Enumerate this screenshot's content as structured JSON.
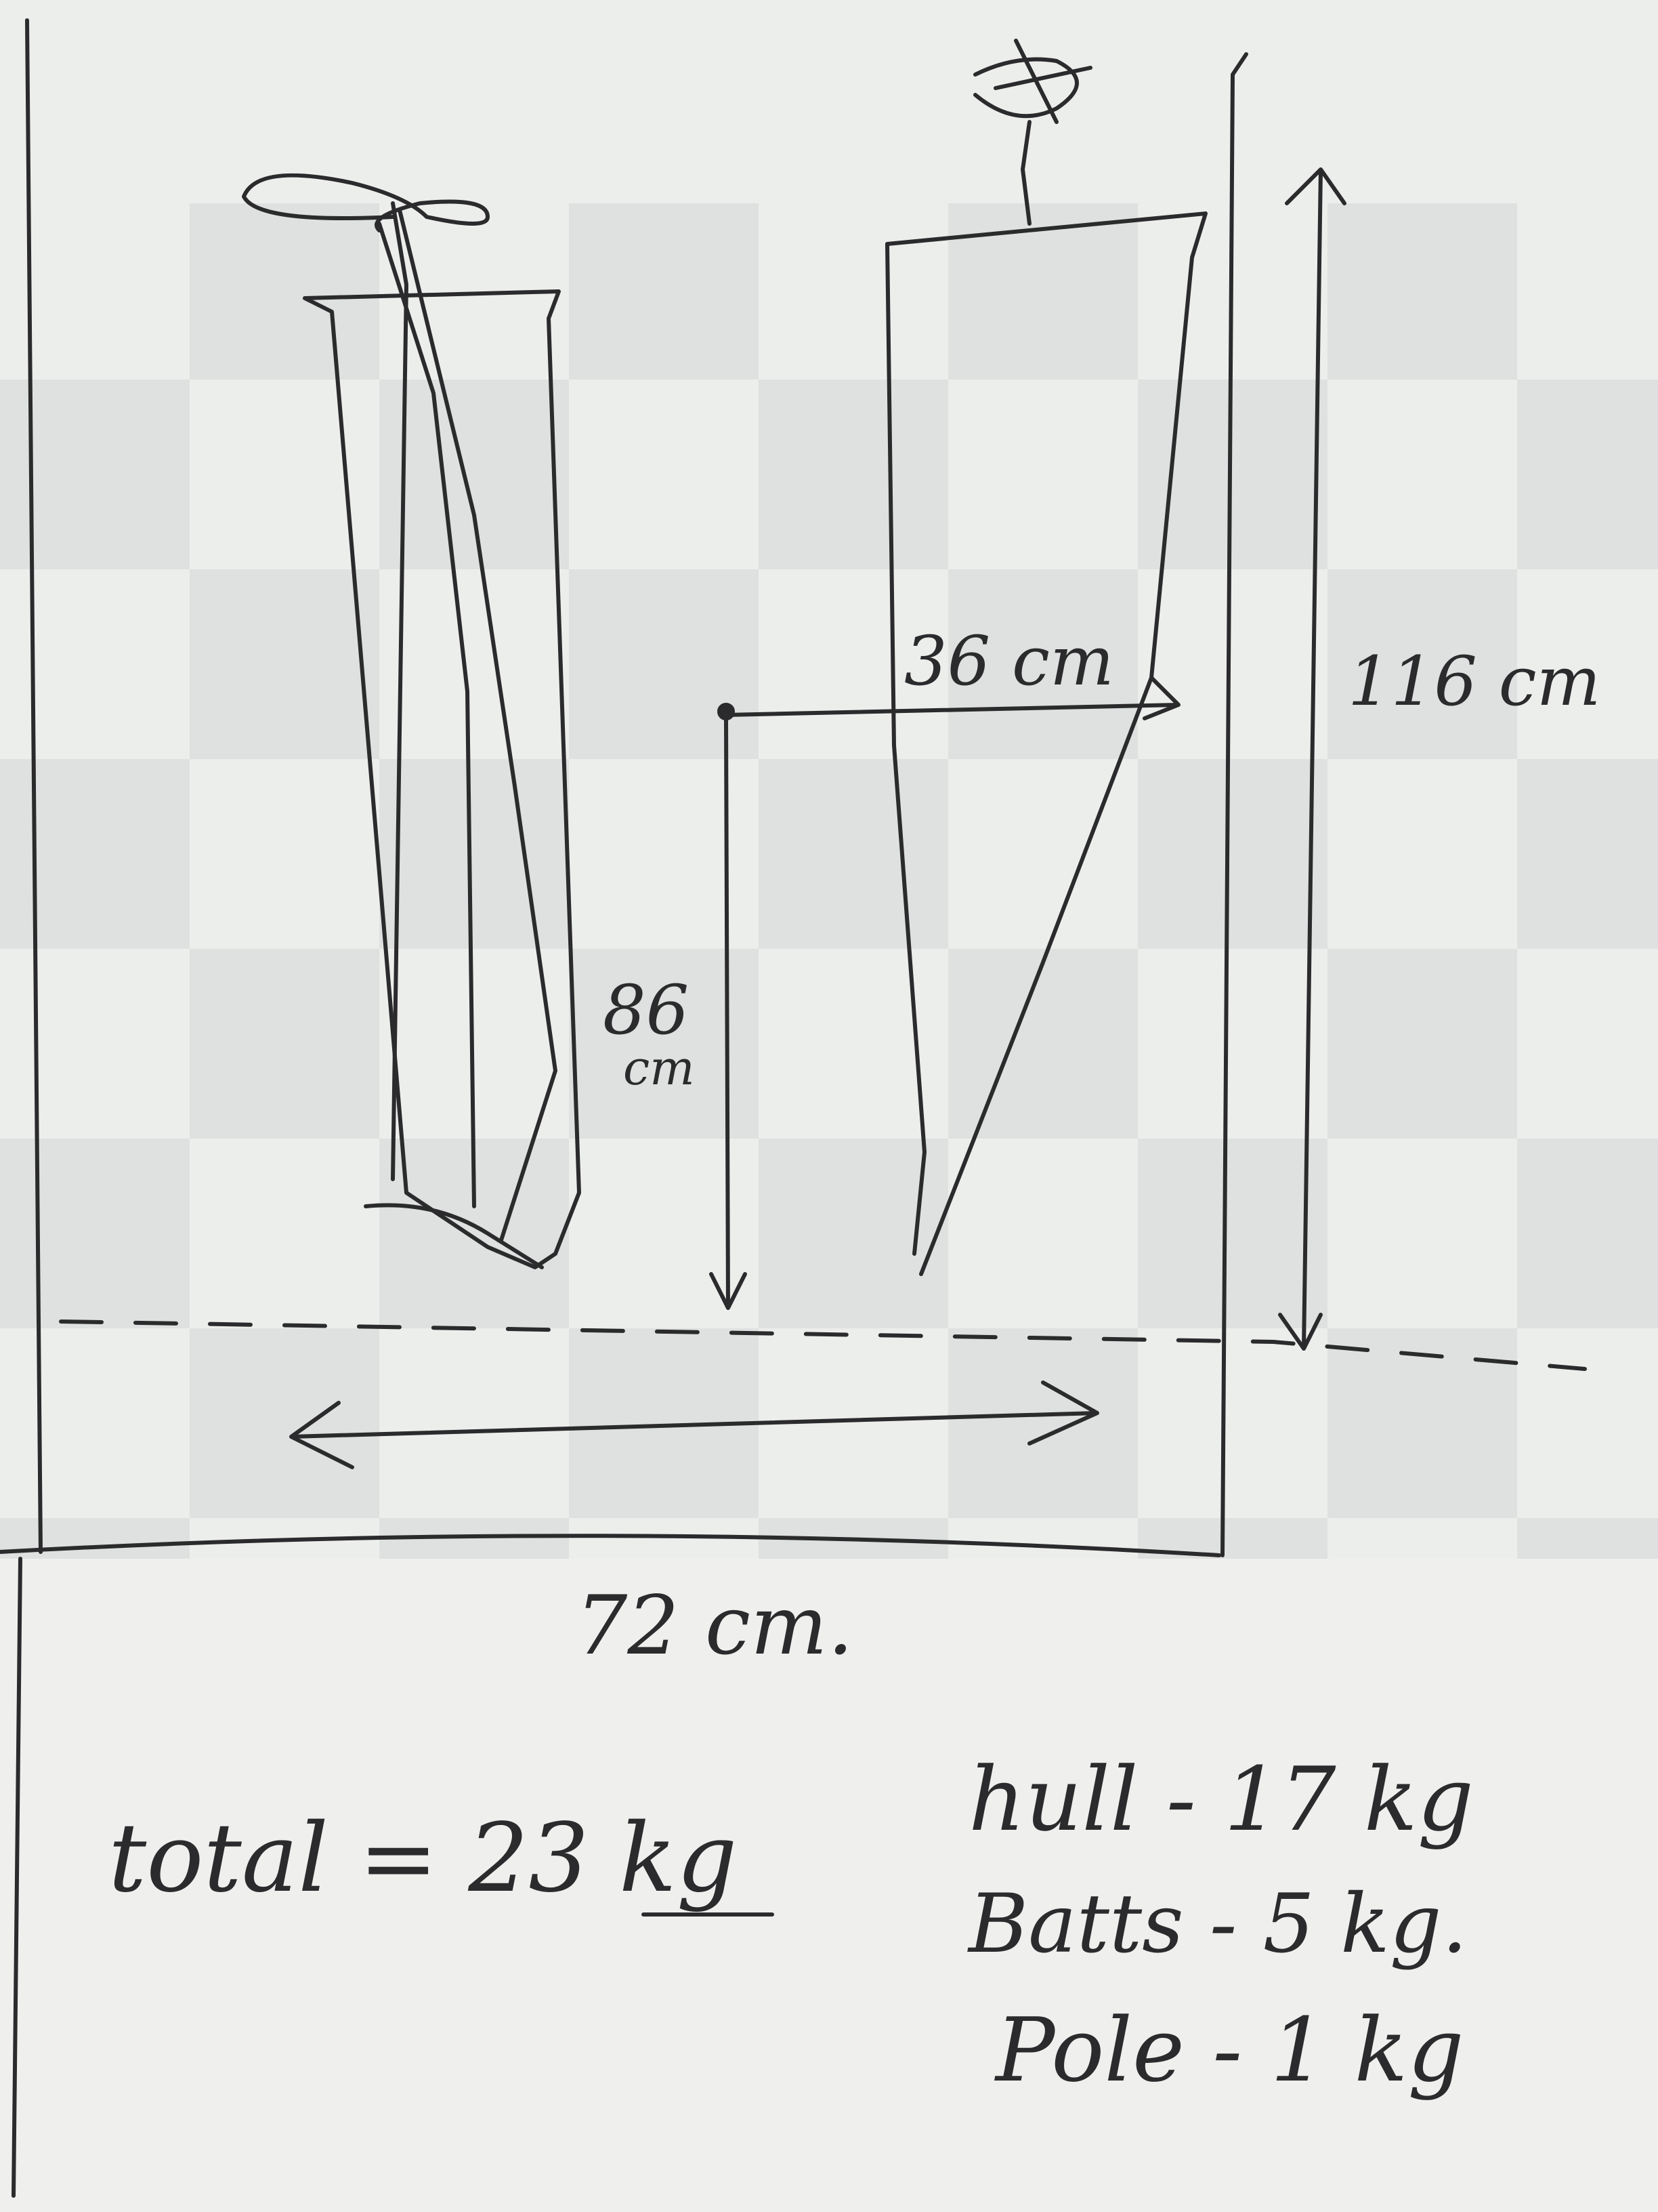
{
  "labels": {
    "offset_to_mast": "36 cm",
    "overall_height": "116 cm",
    "mast_height_num": "86",
    "mast_height_unit": "cm",
    "overall_width": "72 cm."
  },
  "weights": {
    "total": "total = 23 kg",
    "hull": "hull - 17 kg",
    "battens": "Batts - 5 kg.",
    "pole": "Pole - 1 kg"
  },
  "colors": {
    "ink": "#2b2a2c",
    "paper_light": "#eeefed",
    "paper_check": "#d7dbd8"
  }
}
